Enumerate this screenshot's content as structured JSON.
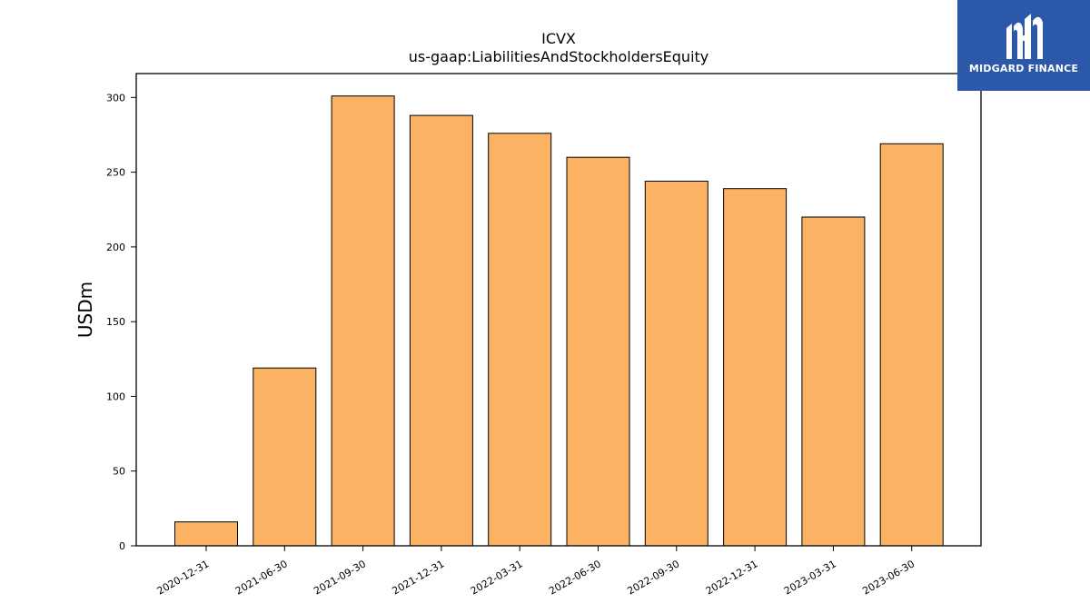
{
  "brand": {
    "name": "MIDGARD FINANCE",
    "background": "#2b58a8"
  },
  "chart_data": {
    "type": "bar",
    "title": "ICVX",
    "subtitle": "us-gaap:LiabilitiesAndStockholdersEquity",
    "xlabel": "",
    "ylabel": "USDm",
    "categories": [
      "2020-12-31",
      "2021-06-30",
      "2021-09-30",
      "2021-12-31",
      "2022-03-31",
      "2022-06-30",
      "2022-09-30",
      "2022-12-31",
      "2023-03-31",
      "2023-06-30"
    ],
    "values": [
      16,
      119,
      301,
      288,
      276,
      260,
      244,
      239,
      220,
      269
    ],
    "ylim": [
      0,
      316
    ],
    "yticks": [
      0,
      50,
      100,
      150,
      200,
      250,
      300
    ],
    "bar_color": "#fbb363",
    "bar_edge_color": "#000000",
    "grid": false,
    "legend": "none"
  }
}
